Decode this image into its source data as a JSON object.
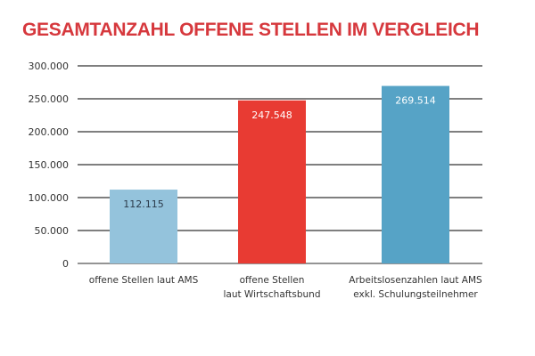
{
  "chart_data": {
    "type": "bar",
    "title": "GESAMTANZAHL OFFENE STELLEN IM VERGLEICH",
    "xlabel": "",
    "ylabel": "",
    "ylim": [
      0,
      300000
    ],
    "yticks": [
      0,
      50000,
      100000,
      150000,
      200000,
      250000,
      300000
    ],
    "ytick_labels": [
      "0",
      "50.000",
      "100.000",
      "150.000",
      "200.000",
      "250.000",
      "300.000"
    ],
    "grid": true,
    "categories": [
      [
        "offene Stellen laut AMS"
      ],
      [
        "offene Stellen",
        "laut Wirtschaftsbund"
      ],
      [
        "Arbeitslosenzahlen laut AMS",
        "exkl. Schulungsteilnehmer"
      ]
    ],
    "values": [
      112115,
      247548,
      269514
    ],
    "data_labels": [
      "112.115",
      "247.548",
      "269.514"
    ],
    "colors": [
      "#94c3dc",
      "#e83b33",
      "#56a3c6"
    ],
    "label_colors": [
      "#2b3a4a",
      "#ffffff",
      "#ffffff"
    ]
  }
}
